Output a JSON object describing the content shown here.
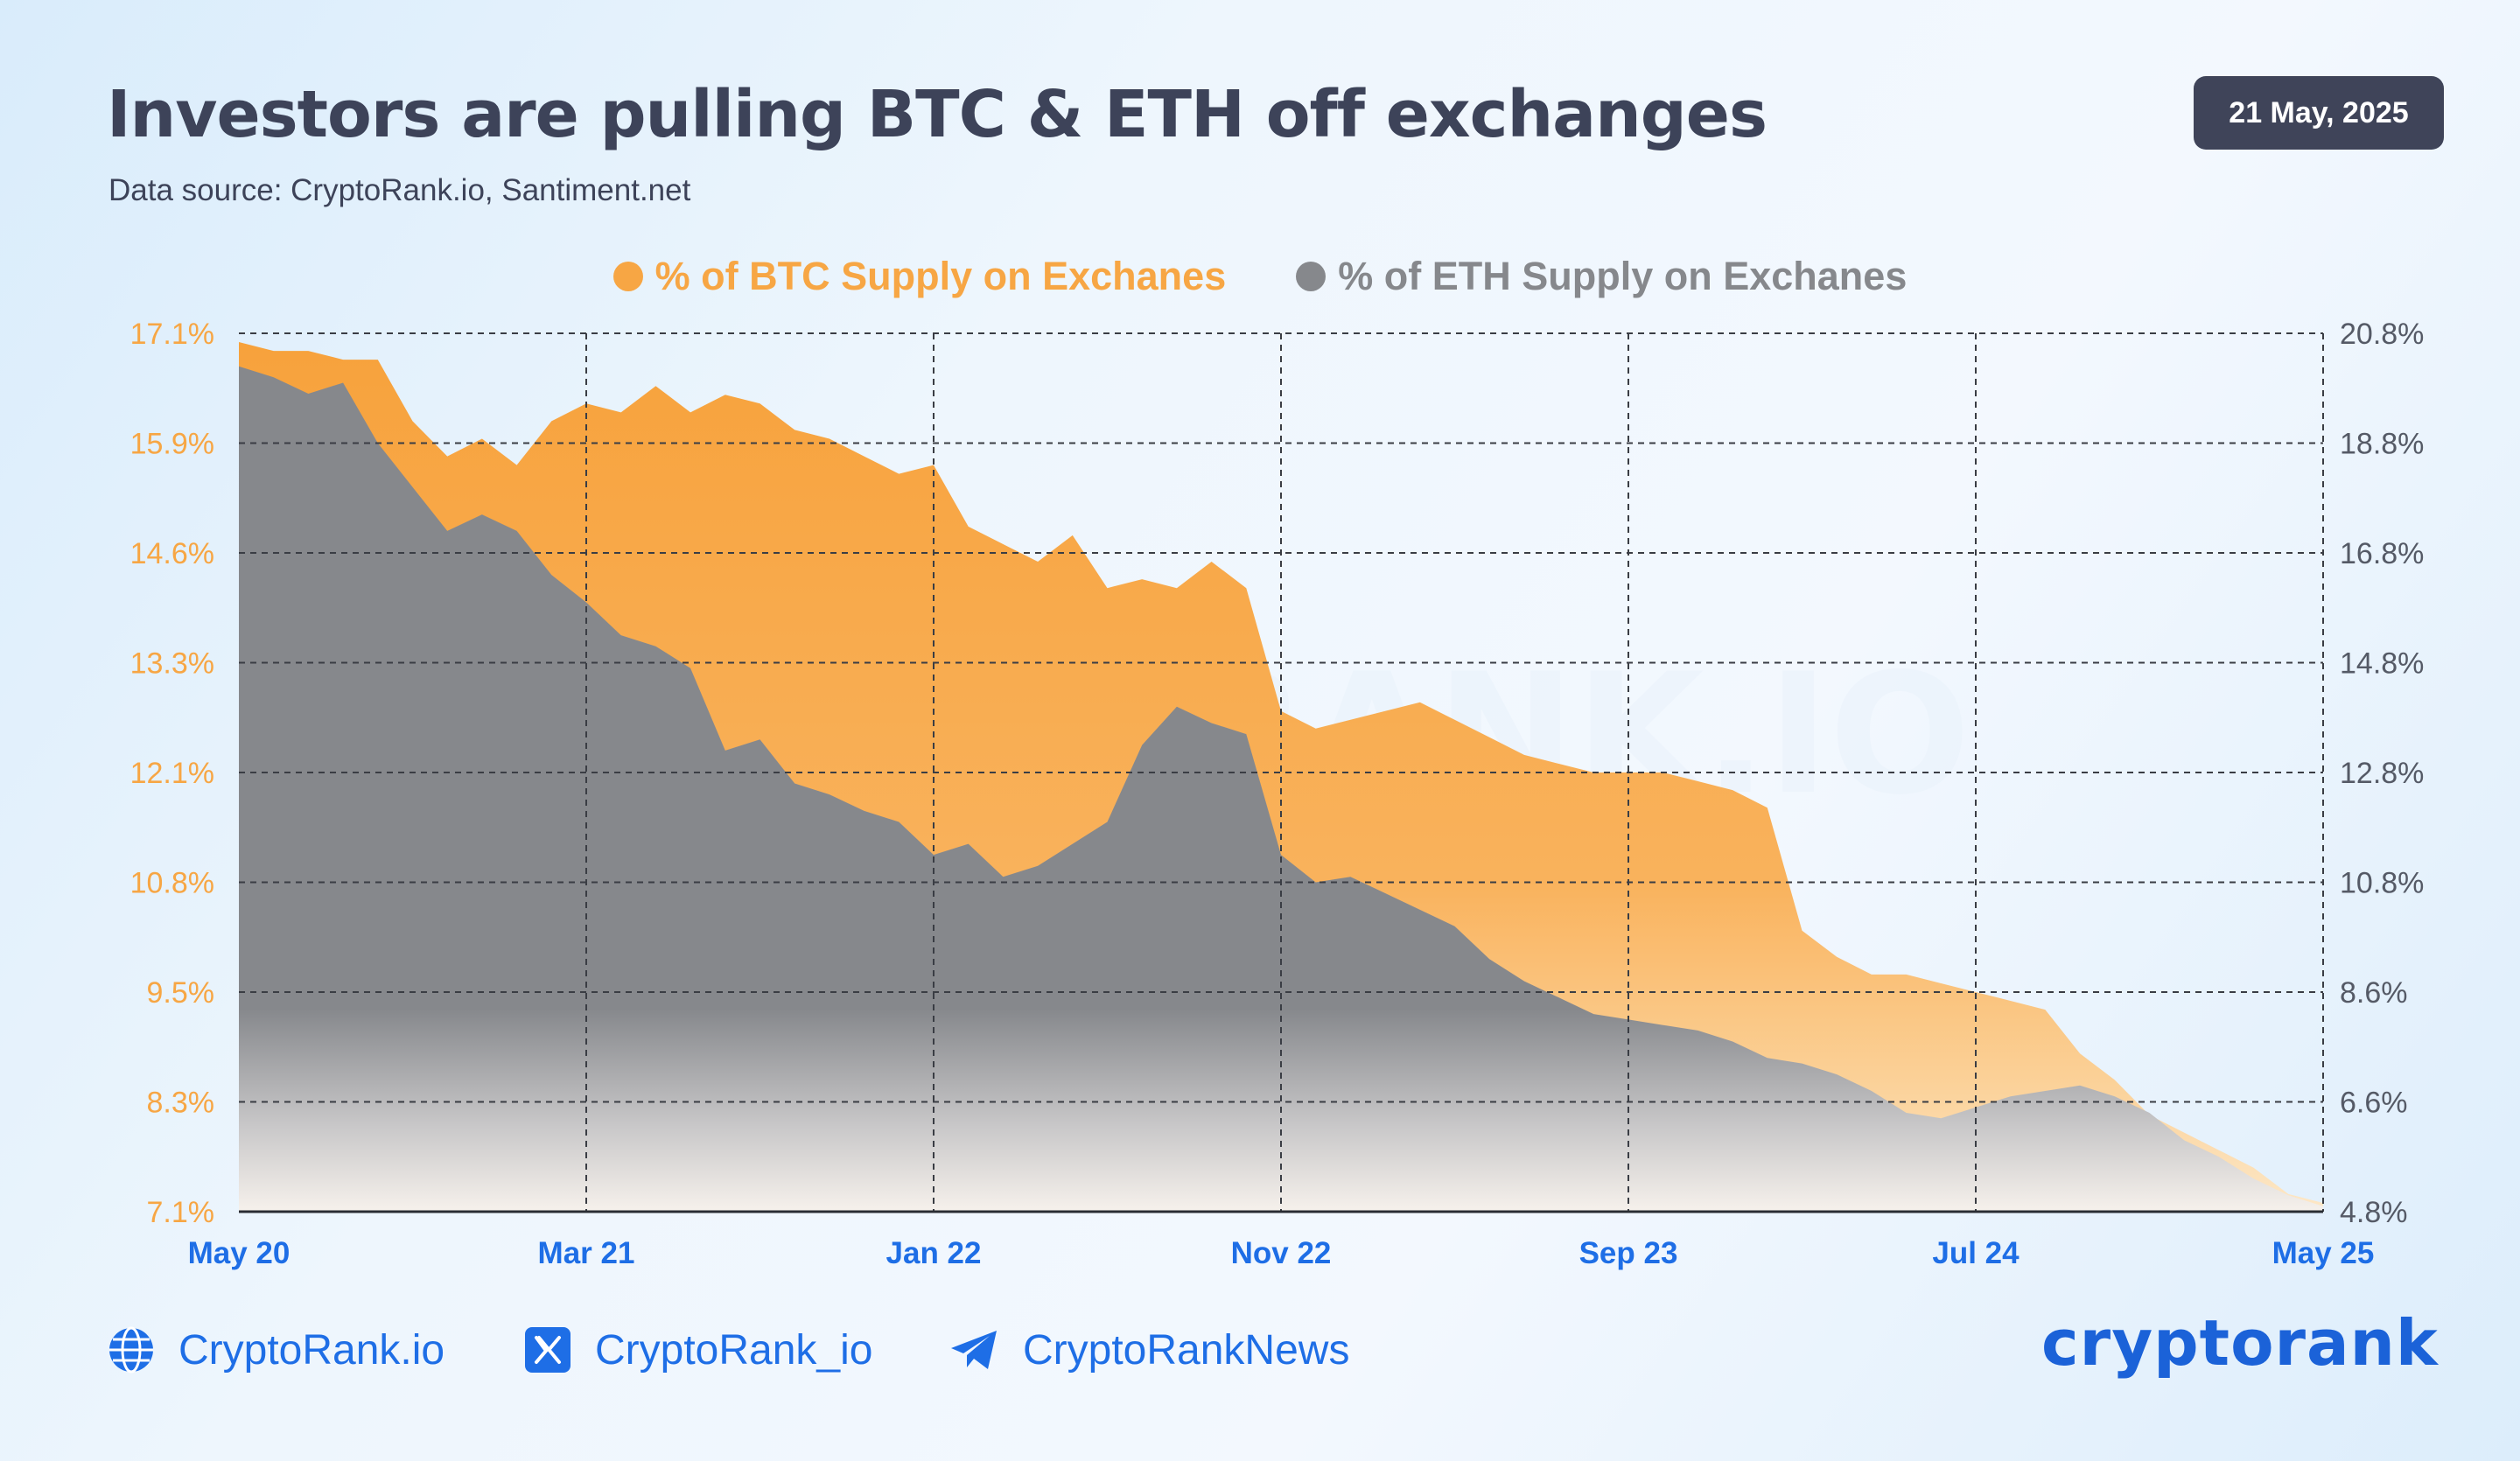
{
  "header": {
    "title": "Investors are pulling BTC & ETH off exchanges",
    "subtitle": "Data source: CryptoRank.io, Santiment.net",
    "date": "21 May, 2025"
  },
  "colors": {
    "btc": "#f7a644",
    "eth": "#86888c",
    "accent_blue": "#1e6ee6",
    "badge_bg": "#3f4459"
  },
  "chart_data": {
    "type": "area",
    "legend_position": "top-center",
    "grid": true,
    "x_tick_labels": [
      "May 20",
      "Mar 21",
      "Jan 22",
      "Nov 22",
      "Sep 23",
      "Jul 24",
      "May 25"
    ],
    "y_left": {
      "ticks": [
        "17.1%",
        "15.9%",
        "14.6%",
        "13.3%",
        "12.1%",
        "10.8%",
        "9.5%",
        "8.3%",
        "7.1%"
      ],
      "range": [
        7.1,
        17.1
      ],
      "color": "#f7a644"
    },
    "y_right": {
      "ticks": [
        "20.8%",
        "18.8%",
        "16.8%",
        "14.8%",
        "12.8%",
        "10.8%",
        "8.6%",
        "6.6%",
        "4.8%"
      ],
      "range": [
        4.8,
        20.8
      ],
      "color": "#555a66"
    },
    "series": [
      {
        "name": "% of BTC Supply on Exchanes",
        "axis": "left",
        "points": [
          [
            "2020-05",
            17.0
          ],
          [
            "2020-06",
            16.9
          ],
          [
            "2020-07",
            16.9
          ],
          [
            "2020-08",
            16.8
          ],
          [
            "2020-09",
            16.8
          ],
          [
            "2020-10",
            16.1
          ],
          [
            "2020-11",
            15.7
          ],
          [
            "2020-12",
            15.9
          ],
          [
            "2021-01",
            15.6
          ],
          [
            "2021-02",
            16.1
          ],
          [
            "2021-03",
            16.3
          ],
          [
            "2021-04",
            16.2
          ],
          [
            "2021-05",
            16.5
          ],
          [
            "2021-06",
            16.2
          ],
          [
            "2021-07",
            16.4
          ],
          [
            "2021-08",
            16.3
          ],
          [
            "2021-09",
            16.0
          ],
          [
            "2021-10",
            15.9
          ],
          [
            "2021-11",
            15.7
          ],
          [
            "2021-12",
            15.5
          ],
          [
            "2022-01",
            15.6
          ],
          [
            "2022-02",
            14.9
          ],
          [
            "2022-03",
            14.7
          ],
          [
            "2022-04",
            14.5
          ],
          [
            "2022-05",
            14.8
          ],
          [
            "2022-06",
            14.2
          ],
          [
            "2022-07",
            14.3
          ],
          [
            "2022-08",
            14.2
          ],
          [
            "2022-09",
            14.5
          ],
          [
            "2022-10",
            14.2
          ],
          [
            "2022-11",
            12.8
          ],
          [
            "2022-12",
            12.6
          ],
          [
            "2023-01",
            12.7
          ],
          [
            "2023-02",
            12.8
          ],
          [
            "2023-03",
            12.9
          ],
          [
            "2023-04",
            12.7
          ],
          [
            "2023-05",
            12.5
          ],
          [
            "2023-06",
            12.3
          ],
          [
            "2023-07",
            12.2
          ],
          [
            "2023-08",
            12.1
          ],
          [
            "2023-09",
            12.1
          ],
          [
            "2023-10",
            12.1
          ],
          [
            "2023-11",
            12.0
          ],
          [
            "2023-12",
            11.9
          ],
          [
            "2024-01",
            11.7
          ],
          [
            "2024-02",
            10.3
          ],
          [
            "2024-03",
            10.0
          ],
          [
            "2024-04",
            9.8
          ],
          [
            "2024-05",
            9.8
          ],
          [
            "2024-06",
            9.7
          ],
          [
            "2024-07",
            9.6
          ],
          [
            "2024-08",
            9.5
          ],
          [
            "2024-09",
            9.4
          ],
          [
            "2024-10",
            8.9
          ],
          [
            "2024-11",
            8.6
          ],
          [
            "2024-12",
            8.2
          ],
          [
            "2025-01",
            8.0
          ],
          [
            "2025-02",
            7.8
          ],
          [
            "2025-03",
            7.6
          ],
          [
            "2025-04",
            7.3
          ],
          [
            "2025-05",
            7.2
          ]
        ]
      },
      {
        "name": "% of ETH Supply on Exchanes",
        "axis": "right",
        "points": [
          [
            "2020-05",
            20.2
          ],
          [
            "2020-06",
            20.0
          ],
          [
            "2020-07",
            19.7
          ],
          [
            "2020-08",
            19.9
          ],
          [
            "2020-09",
            18.8
          ],
          [
            "2020-10",
            18.0
          ],
          [
            "2020-11",
            17.2
          ],
          [
            "2020-12",
            17.5
          ],
          [
            "2021-01",
            17.2
          ],
          [
            "2021-02",
            16.4
          ],
          [
            "2021-03",
            15.9
          ],
          [
            "2021-04",
            15.3
          ],
          [
            "2021-05",
            15.1
          ],
          [
            "2021-06",
            14.7
          ],
          [
            "2021-07",
            13.2
          ],
          [
            "2021-08",
            13.4
          ],
          [
            "2021-09",
            12.6
          ],
          [
            "2021-10",
            12.4
          ],
          [
            "2021-11",
            12.1
          ],
          [
            "2021-12",
            11.9
          ],
          [
            "2022-01",
            11.3
          ],
          [
            "2022-02",
            11.5
          ],
          [
            "2022-03",
            10.9
          ],
          [
            "2022-04",
            11.1
          ],
          [
            "2022-05",
            11.5
          ],
          [
            "2022-06",
            11.9
          ],
          [
            "2022-07",
            13.3
          ],
          [
            "2022-08",
            14.0
          ],
          [
            "2022-09",
            13.7
          ],
          [
            "2022-10",
            13.5
          ],
          [
            "2022-11",
            11.3
          ],
          [
            "2022-12",
            10.8
          ],
          [
            "2023-01",
            10.9
          ],
          [
            "2023-02",
            10.6
          ],
          [
            "2023-03",
            10.3
          ],
          [
            "2023-04",
            10.0
          ],
          [
            "2023-05",
            9.4
          ],
          [
            "2023-06",
            9.0
          ],
          [
            "2023-07",
            8.7
          ],
          [
            "2023-08",
            8.4
          ],
          [
            "2023-09",
            8.3
          ],
          [
            "2023-10",
            8.2
          ],
          [
            "2023-11",
            8.1
          ],
          [
            "2023-12",
            7.9
          ],
          [
            "2024-01",
            7.6
          ],
          [
            "2024-02",
            7.5
          ],
          [
            "2024-03",
            7.3
          ],
          [
            "2024-04",
            7.0
          ],
          [
            "2024-05",
            6.6
          ],
          [
            "2024-06",
            6.5
          ],
          [
            "2024-07",
            6.7
          ],
          [
            "2024-08",
            6.9
          ],
          [
            "2024-09",
            7.0
          ],
          [
            "2024-10",
            7.1
          ],
          [
            "2024-11",
            6.9
          ],
          [
            "2024-12",
            6.6
          ],
          [
            "2025-01",
            6.1
          ],
          [
            "2025-02",
            5.8
          ],
          [
            "2025-03",
            5.4
          ],
          [
            "2025-04",
            5.1
          ],
          [
            "2025-05",
            4.9
          ]
        ]
      }
    ]
  },
  "watermark": "RANK.IO",
  "footer": {
    "links": [
      {
        "icon": "globe-icon",
        "label": "CryptoRank.io"
      },
      {
        "icon": "x-logo-icon",
        "label": "CryptoRank_io"
      },
      {
        "icon": "telegram-icon",
        "label": "CryptoRankNews"
      }
    ],
    "brand": "cryptorank"
  }
}
